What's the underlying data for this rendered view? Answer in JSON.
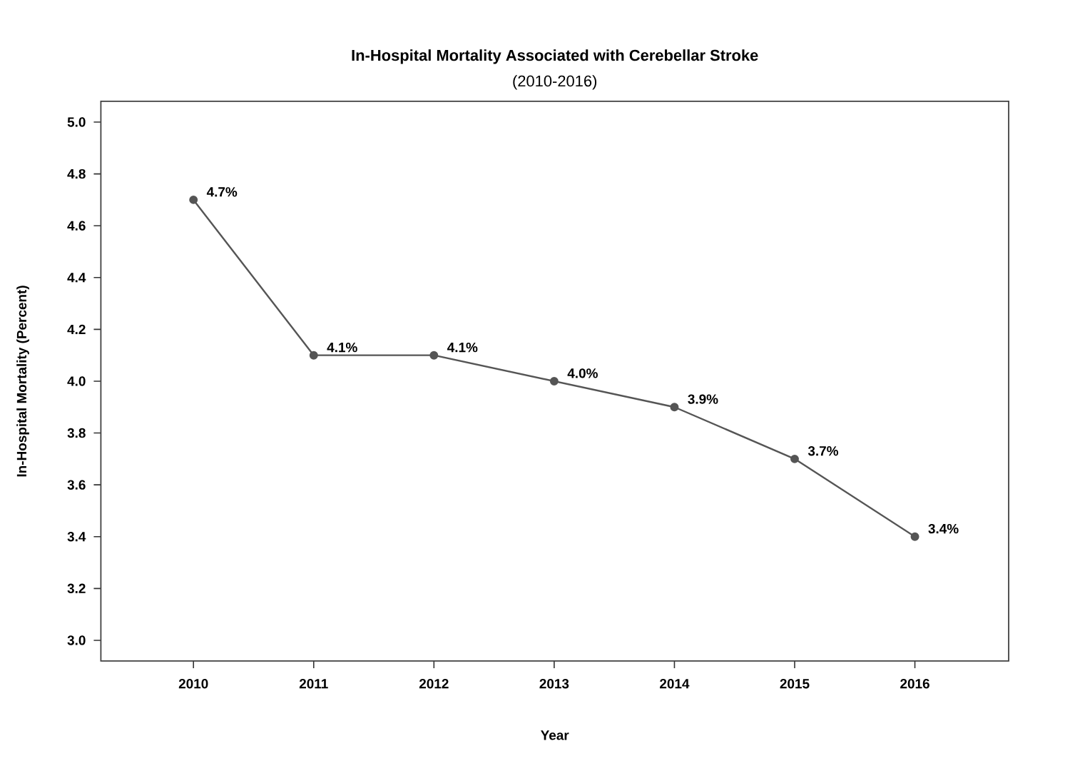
{
  "chart_data": {
    "type": "line",
    "title": "In-Hospital Mortality Associated with Cerebellar Stroke",
    "subtitle": "(2010-2016)",
    "xlabel": "Year",
    "ylabel": "In-Hospital Mortality (Percent)",
    "x": [
      2010,
      2011,
      2012,
      2013,
      2014,
      2015,
      2016
    ],
    "values": [
      4.7,
      4.1,
      4.1,
      4.0,
      3.9,
      3.7,
      3.4
    ],
    "value_labels": [
      "4.7%",
      "4.1%",
      "4.1%",
      "4.0%",
      "3.9%",
      "3.7%",
      "3.4%"
    ],
    "color": "#555555",
    "marker": "circle",
    "line_style": "solid",
    "xlim": [
      2009.23,
      2016.78
    ],
    "ylim": [
      2.92,
      5.08
    ],
    "xticks": [
      2010,
      2011,
      2012,
      2013,
      2014,
      2015,
      2016
    ],
    "yticks": [
      {
        "value": 3.0,
        "label": "3.0"
      },
      {
        "value": 3.2,
        "label": "3.2"
      },
      {
        "value": 3.4,
        "label": "3.4"
      },
      {
        "value": 3.6,
        "label": "3.6"
      },
      {
        "value": 3.8,
        "label": "3.8"
      },
      {
        "value": 4.0,
        "label": "4.0"
      },
      {
        "value": 4.2,
        "label": "4.2"
      },
      {
        "value": 4.4,
        "label": "4.4"
      },
      {
        "value": 4.6,
        "label": "4.6"
      },
      {
        "value": 4.8,
        "label": "4.8"
      },
      {
        "value": 5.0,
        "label": "5.0"
      }
    ]
  }
}
